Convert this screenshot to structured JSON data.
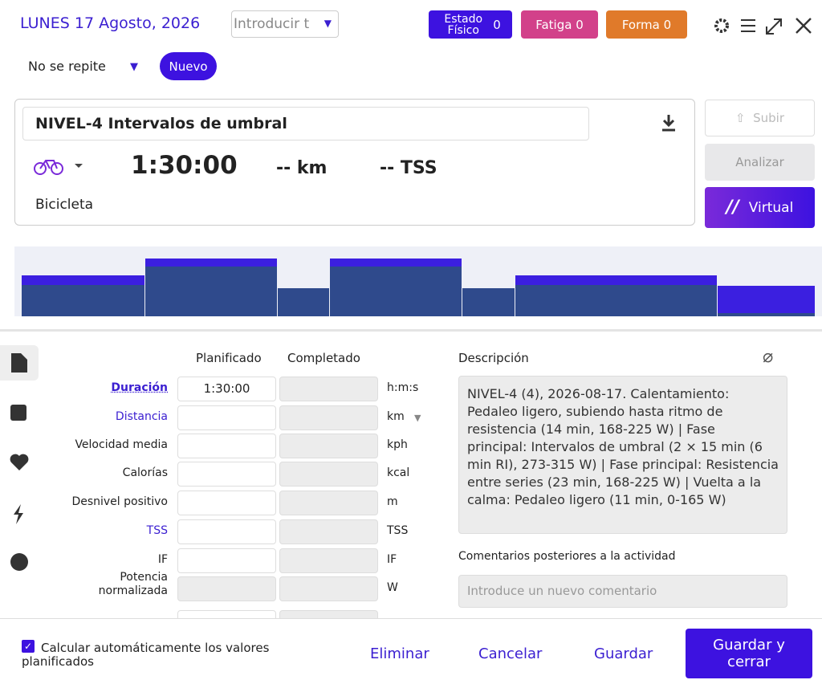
{
  "header": {
    "date": "LUNES 17 Agosto, 2026",
    "input_placeholder": "Introducir t",
    "badges": [
      {
        "label": "Estado Físico",
        "value": 0
      },
      {
        "label": "Fatiga",
        "value": 0
      },
      {
        "label": "Forma",
        "value": 0
      }
    ]
  },
  "repeat": {
    "label": "No se repite",
    "new_button": "Nuevo"
  },
  "workout": {
    "title": "NIVEL-4 Intervalos de umbral",
    "duration": "1:30:00",
    "distance": "-- km",
    "tss": "-- TSS",
    "sport": "Bicicleta"
  },
  "side_buttons": {
    "upload": "Subir",
    "analyze": "Analizar",
    "virtual": "Virtual"
  },
  "table": {
    "columns": [
      "Planificado",
      "Completado"
    ],
    "rows": [
      {
        "label": "Duración",
        "planned": "1:30:00",
        "unit": "h:m:s"
      },
      {
        "label": "Distancia",
        "unit": "km"
      },
      {
        "label": "Velocidad media",
        "unit": "kph"
      },
      {
        "label": "Calorías",
        "unit": "kcal"
      },
      {
        "label": "Desnivel positivo",
        "unit": "m"
      },
      {
        "label": "TSS",
        "unit": "TSS"
      },
      {
        "label": "IF",
        "unit": "IF"
      },
      {
        "label": "Potencia normalizada",
        "unit": "W"
      }
    ]
  },
  "description": {
    "label": "Descripción",
    "text": "NIVEL-4 (4), 2026-08-17. Calentamiento: Pedaleo ligero, subiendo hasta ritmo de resistencia (14 min, 168-225 W) | Fase principal: Intervalos de umbral (2 × 15 min (6 min RI), 273-315 W) | Fase principal: Resistencia entre series (23 min, 168-225 W) | Vuelta a la calma: Pedaleo ligero (11 min, 0-165 W)",
    "comments_label": "Comentarios posteriores a la actividad",
    "comments_placeholder": "Introduce un nuevo comentario"
  },
  "footer": {
    "checkbox_label": "Calcular automáticamente los valores planificados",
    "delete": "Eliminar",
    "cancel": "Cancelar",
    "save": "Guardar",
    "save_close": "Guardar y cerrar"
  }
}
